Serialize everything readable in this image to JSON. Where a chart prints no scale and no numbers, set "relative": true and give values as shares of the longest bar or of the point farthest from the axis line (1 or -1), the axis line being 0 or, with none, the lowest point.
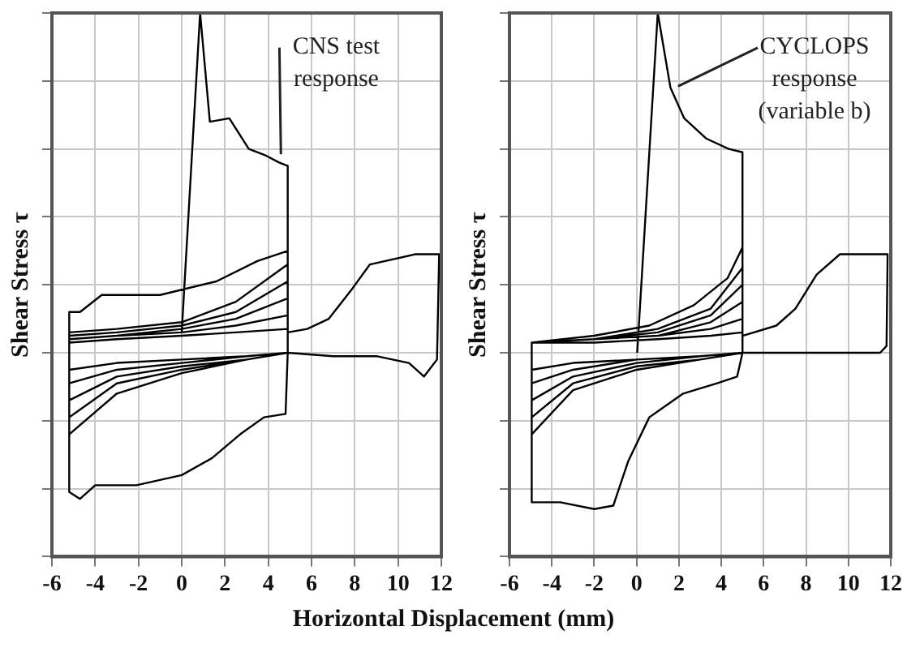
{
  "chart_data": [
    {
      "type": "line",
      "relative": true,
      "xlabel": "Horizontal Displacement (mm)",
      "ylabel": "Shear Stress τ",
      "xlim": [
        -6,
        12
      ],
      "xticks": [
        -6,
        -4,
        -2,
        0,
        2,
        4,
        6,
        8,
        10,
        12
      ],
      "grid": true,
      "legend": false,
      "marker": "none",
      "line_style": "solid",
      "annotations": [
        {
          "text": "CNS test\nresponse",
          "x": 4.36,
          "y": 0.57
        }
      ],
      "series": [
        {
          "color": "#000000",
          "x": [
            0,
            0.85,
            1.3,
            2.2,
            3.1,
            3.9,
            4.5,
            4.9,
            4.9,
            4.8,
            3.8,
            2.7,
            1.4,
            0,
            -2.1,
            -4,
            -4.7,
            -5.2,
            -5.2,
            -4.7,
            -3.7,
            -1,
            1.6,
            3.5,
            4.9,
            4.9,
            3,
            0,
            -3,
            -5.2,
            -5.2,
            -3,
            0,
            2.5,
            4.9,
            4.9,
            3,
            0,
            -3,
            -5.2,
            -5.2,
            -3,
            0,
            2.5,
            4.9,
            4.9,
            3,
            0,
            -3,
            -5.2,
            -5.2,
            -3,
            0,
            2.5,
            4.9,
            4.9,
            3,
            0,
            -3,
            -5.2,
            -5.2,
            -3,
            0,
            2.5,
            4.9,
            4.9,
            3,
            0,
            -3,
            -5.2,
            -5.2,
            -3,
            0,
            2.5,
            4.9,
            4.9,
            7,
            9,
            10.5,
            11.2,
            11.8,
            11.9,
            10.8,
            8.7,
            7.9,
            6.8,
            5.8,
            4.9
          ],
          "values": [
            0.06,
            1,
            0.68,
            0.69,
            0.6,
            0.58,
            0.56,
            0.55,
            0,
            -0.18,
            -0.19,
            -0.24,
            -0.31,
            -0.36,
            -0.39,
            -0.39,
            -0.43,
            -0.41,
            0.12,
            0.12,
            0.17,
            0.17,
            0.21,
            0.27,
            0.3,
            0,
            -0.02,
            -0.06,
            -0.12,
            -0.24,
            0.06,
            0.07,
            0.09,
            0.15,
            0.26,
            0,
            -0.02,
            -0.05,
            -0.09,
            -0.19,
            0.05,
            0.06,
            0.08,
            0.12,
            0.21,
            0,
            -0.02,
            -0.04,
            -0.07,
            -0.14,
            0.04,
            0.05,
            0.07,
            0.1,
            0.16,
            0,
            -0.01,
            -0.03,
            -0.05,
            -0.09,
            0.04,
            0.05,
            0.06,
            0.08,
            0.11,
            0,
            -0.01,
            -0.02,
            -0.03,
            -0.05,
            0.03,
            0.04,
            0.05,
            0.06,
            0.07,
            0,
            -0.01,
            -0.01,
            -0.03,
            -0.07,
            -0.02,
            0.29,
            0.29,
            0.26,
            0.19,
            0.1,
            0.07,
            0.06
          ]
        }
      ]
    },
    {
      "type": "line",
      "relative": true,
      "ylabel": "Shear Stress τ",
      "xlim": [
        -6,
        12
      ],
      "xticks": [
        -6,
        -4,
        -2,
        0,
        2,
        4,
        6,
        8,
        10,
        12
      ],
      "grid": true,
      "legend": false,
      "marker": "none",
      "line_style": "solid",
      "annotations": [
        {
          "text": "CYCLOPS\nresponse\n(variable b)",
          "x": 1.73,
          "y": 0.77
        }
      ],
      "series": [
        {
          "color": "#000000",
          "x": [
            0.03,
            1,
            1.6,
            2.25,
            3.3,
            4.35,
            5,
            5,
            4.75,
            3.8,
            2.2,
            0.6,
            -0.4,
            -1.1,
            -2,
            -3.6,
            -4.95,
            -4.95,
            -2,
            0.6,
            2.7,
            4.3,
            5,
            5,
            3,
            0,
            -3,
            -4.95,
            -4.95,
            -2,
            1,
            3.5,
            5,
            5,
            3,
            0,
            -3,
            -4.95,
            -4.95,
            -2,
            1,
            3.5,
            5,
            5,
            3,
            0,
            -3,
            -4.95,
            -4.95,
            -2,
            1,
            3.5,
            5,
            5,
            3,
            0,
            -3,
            -4.95,
            -4.95,
            -2,
            1,
            3.5,
            5,
            5,
            3,
            0,
            -3,
            -4.95,
            -4.95,
            -2,
            1,
            3.5,
            5,
            5,
            8,
            11.5,
            11.8,
            11.85,
            9.6,
            8.5,
            7.5,
            6.6,
            5
          ],
          "values": [
            0,
            1,
            0.78,
            0.69,
            0.63,
            0.6,
            0.59,
            0,
            -0.07,
            -0.09,
            -0.12,
            -0.19,
            -0.32,
            -0.45,
            -0.46,
            -0.44,
            -0.44,
            0.03,
            0.05,
            0.08,
            0.14,
            0.22,
            0.31,
            0,
            -0.02,
            -0.05,
            -0.11,
            -0.24,
            0.03,
            0.04,
            0.07,
            0.13,
            0.25,
            0,
            -0.02,
            -0.04,
            -0.09,
            -0.19,
            0.03,
            0.04,
            0.06,
            0.11,
            0.2,
            0,
            -0.01,
            -0.03,
            -0.07,
            -0.14,
            0.03,
            0.04,
            0.05,
            0.09,
            0.15,
            0,
            -0.01,
            -0.02,
            -0.05,
            -0.09,
            0.03,
            0.04,
            0.05,
            0.07,
            0.1,
            0,
            -0.01,
            -0.02,
            -0.03,
            -0.05,
            0.03,
            0.03,
            0.04,
            0.05,
            0.06,
            0,
            0,
            0,
            0.02,
            0.29,
            0.29,
            0.23,
            0.13,
            0.08,
            0.05
          ]
        }
      ]
    }
  ]
}
